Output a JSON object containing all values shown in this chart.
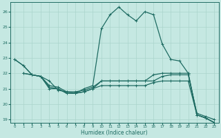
{
  "xlabel": "Humidex (Indice chaleur)",
  "xlim": [
    -0.5,
    23.5
  ],
  "ylim": [
    18.8,
    26.6
  ],
  "yticks": [
    19,
    20,
    21,
    22,
    23,
    24,
    25,
    26
  ],
  "xticks": [
    0,
    1,
    2,
    3,
    4,
    5,
    6,
    7,
    8,
    9,
    10,
    11,
    12,
    13,
    14,
    15,
    16,
    17,
    18,
    19,
    20,
    21,
    22,
    23
  ],
  "background_color": "#c5e8e2",
  "grid_color": "#aad4cc",
  "line_color": "#1e6b62",
  "line1_x": [
    0,
    1,
    2,
    3,
    4,
    5,
    6,
    7,
    8,
    9,
    10,
    11,
    12,
    13,
    14,
    15,
    16,
    17,
    18,
    19,
    20,
    21,
    22,
    23
  ],
  "line1_y": [
    22.9,
    22.5,
    21.9,
    21.8,
    21.5,
    20.9,
    20.8,
    20.7,
    20.8,
    21.0,
    21.5,
    21.5,
    21.5,
    21.5,
    21.5,
    21.5,
    21.9,
    22.0,
    22.0,
    22.0,
    22.0,
    19.3,
    19.1,
    18.8
  ],
  "line2_x": [
    0,
    1,
    2,
    3,
    4,
    5,
    6,
    7,
    8,
    9,
    10,
    11,
    12,
    13,
    14,
    15,
    16,
    17,
    18,
    19,
    20,
    21,
    22,
    23
  ],
  "line2_y": [
    22.9,
    22.5,
    21.9,
    21.8,
    21.1,
    21.0,
    20.7,
    20.7,
    21.0,
    21.2,
    24.9,
    25.8,
    26.3,
    25.8,
    25.4,
    26.0,
    25.8,
    23.9,
    22.9,
    22.8,
    22.0,
    19.3,
    19.1,
    18.8
  ],
  "line3_x": [
    1,
    2,
    3,
    4,
    5,
    6,
    7,
    8,
    9,
    10,
    11,
    12,
    13,
    14,
    15,
    16,
    17,
    18,
    19,
    20,
    21,
    22,
    23
  ],
  "line3_y": [
    22.0,
    21.9,
    21.8,
    21.2,
    21.1,
    20.8,
    20.8,
    20.9,
    21.1,
    21.5,
    21.5,
    21.5,
    21.5,
    21.5,
    21.5,
    21.5,
    21.8,
    21.9,
    21.9,
    21.9,
    19.4,
    19.2,
    19.0
  ],
  "line4_x": [
    1,
    2,
    3,
    4,
    5,
    6,
    7,
    8,
    9,
    10,
    11,
    12,
    13,
    14,
    15,
    16,
    17,
    18,
    19,
    20,
    21,
    22,
    23
  ],
  "line4_y": [
    22.0,
    21.9,
    21.8,
    21.0,
    21.0,
    20.7,
    20.7,
    20.8,
    21.0,
    21.2,
    21.2,
    21.2,
    21.2,
    21.2,
    21.2,
    21.4,
    21.5,
    21.5,
    21.5,
    21.5,
    19.3,
    19.1,
    18.8
  ]
}
